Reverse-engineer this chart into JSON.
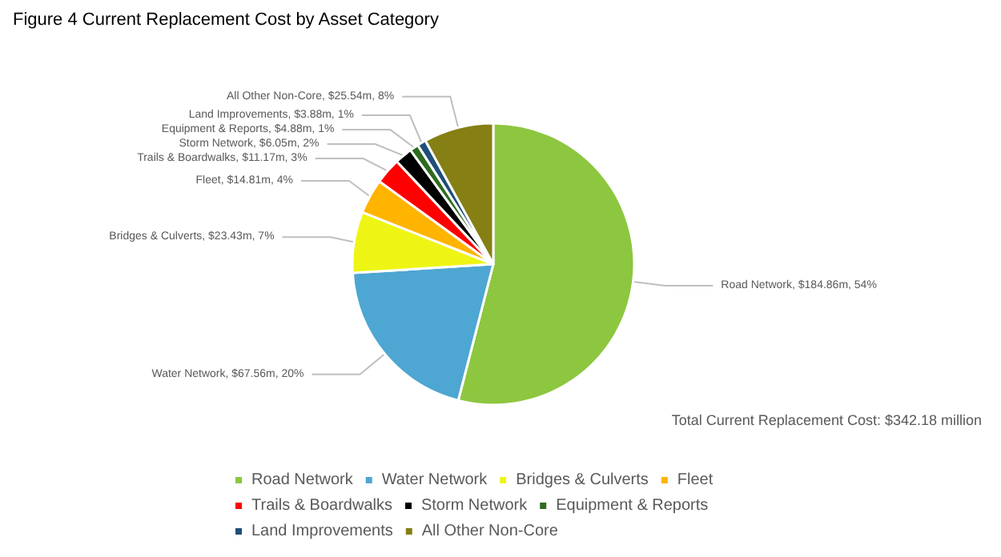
{
  "chart_data": {
    "type": "pie",
    "title": "Figure 4 Current Replacement Cost by Asset Category",
    "categories": [
      "Road Network",
      "Water Network",
      "Bridges & Culverts",
      "Fleet",
      "Trails & Boardwalks",
      "Storm Network",
      "Equipment & Reports",
      "Land Improvements",
      "All Other Non-Core"
    ],
    "values": [
      54,
      20,
      7,
      4,
      3,
      2,
      1,
      1,
      8
    ],
    "colors": [
      "#8dc63f",
      "#4ea6d2",
      "#eef514",
      "#ffb400",
      "#ff0000",
      "#000000",
      "#2e6b1f",
      "#1f4e79",
      "#857f14"
    ],
    "value_labels": [
      "Road Network, $184.86m, 54%",
      "Water Network, $67.56m, 20%",
      "Bridges & Culverts, $23.43m, 7%",
      "Fleet, $14.81m, 4%",
      "Trails & Boardwalks, $11.17m, 3%",
      "Storm Network, $6.05m, 2%",
      "Equipment & Reports, $4.88m, 1%",
      "Land Improvements, $3.88m, 1%",
      "All Other Non-Core, $25.54m, 8%"
    ],
    "annotations": [
      "Total Current Replacement Cost: $342.18 million"
    ],
    "legend": "bottom"
  }
}
